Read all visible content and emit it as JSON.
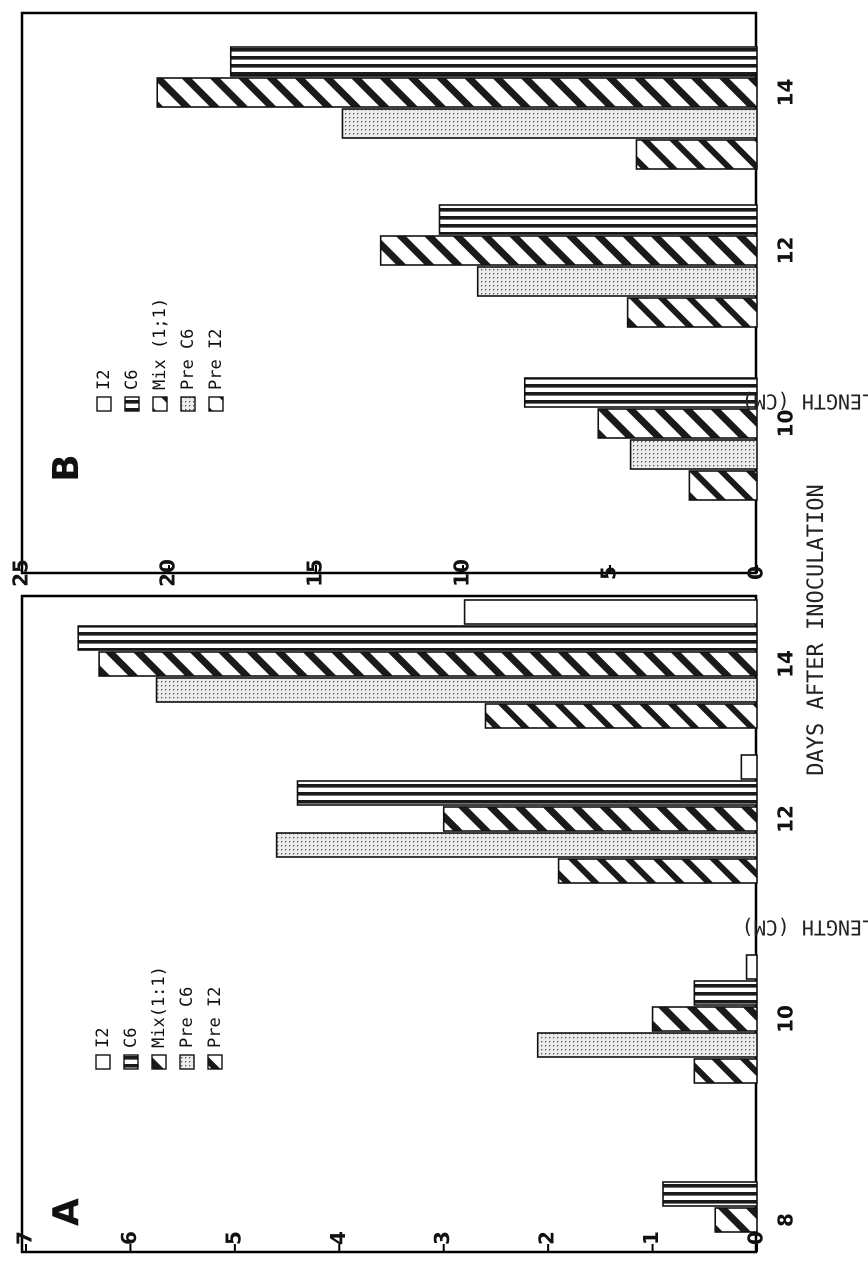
{
  "figure": {
    "xlabel": "DAYS AFTER INOCULATION"
  },
  "chart_data": [
    {
      "type": "bar",
      "panel": "A",
      "title": "",
      "xlabel": "DAYS AFTER INOCULATION",
      "ylabel": "LESION LENGTH (CM)",
      "categories": [
        "8",
        "10",
        "12",
        "14"
      ],
      "ylim": [
        0,
        7
      ],
      "yticks": [
        "0",
        "1",
        "2",
        "3",
        "4",
        "5",
        "6",
        "7"
      ],
      "legend": [
        "I2",
        "C6",
        "Mix(1:1)",
        "Pre C6",
        "Pre I2"
      ],
      "series": [
        {
          "name": "I2",
          "values": [
            0,
            0.1,
            0.15,
            2.8
          ]
        },
        {
          "name": "C6",
          "values": [
            0.9,
            0.6,
            4.4,
            6.5
          ]
        },
        {
          "name": "Mix(1:1)",
          "values": [
            0.4,
            1.0,
            3.0,
            6.3
          ]
        },
        {
          "name": "Pre C6",
          "values": [
            null,
            2.1,
            4.6,
            5.75
          ]
        },
        {
          "name": "Pre I2",
          "values": [
            null,
            0.6,
            1.9,
            2.6
          ]
        }
      ]
    },
    {
      "type": "bar",
      "panel": "B",
      "title": "",
      "xlabel": "DAYS AFTER INOCULATION",
      "ylabel": "LESION LENGTH (CM)",
      "categories": [
        "10",
        "12",
        "14"
      ],
      "ylim": [
        0,
        25
      ],
      "yticks": [
        "0",
        "5",
        "10",
        "15",
        "20",
        "25"
      ],
      "legend": [
        "I2",
        "C6",
        "Mix (1;1)",
        "Pre C6",
        "Pre I2"
      ],
      "series": [
        {
          "name": "I2",
          "values": [
            0,
            0,
            0
          ]
        },
        {
          "name": "C6",
          "values": [
            7.9,
            10.8,
            17.9
          ]
        },
        {
          "name": "Mix (1;1)",
          "values": [
            5.4,
            12.8,
            20.4
          ]
        },
        {
          "name": "Pre C6",
          "values": [
            4.3,
            9.5,
            14.1
          ]
        },
        {
          "name": "Pre I2",
          "values": [
            2.3,
            4.4,
            4.1
          ]
        }
      ]
    }
  ]
}
